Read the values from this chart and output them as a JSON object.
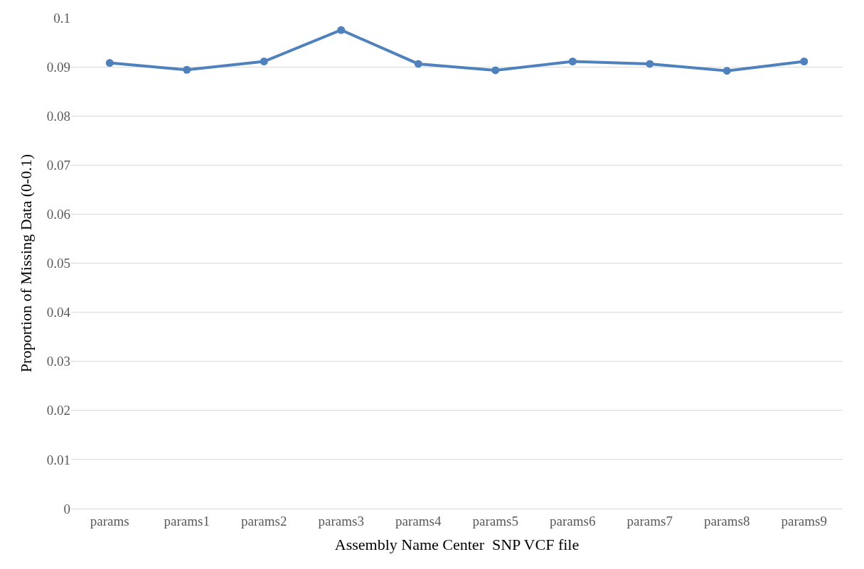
{
  "chart_data": {
    "type": "line",
    "xlabel": "Assembly Name Center  SNP VCF file",
    "ylabel": "Proportion of Missing Data (0-0.1)",
    "categories": [
      "params",
      "params1",
      "params2",
      "params3",
      "params4",
      "params5",
      "params6",
      "params7",
      "params8",
      "params9"
    ],
    "series": [
      {
        "color": "#4f81bd",
        "values": [
          0.0908,
          0.0894,
          0.0911,
          0.0975,
          0.0906,
          0.0893,
          0.0911,
          0.0906,
          0.0892,
          0.0911
        ]
      }
    ],
    "ylim": [
      0,
      0.1
    ],
    "yticks": [
      0,
      0.01,
      0.02,
      0.03,
      0.04,
      0.05,
      0.06,
      0.07,
      0.08,
      0.09,
      0.1
    ],
    "grid": "y",
    "marker": "circle",
    "line_style": "solid",
    "legend": false
  }
}
